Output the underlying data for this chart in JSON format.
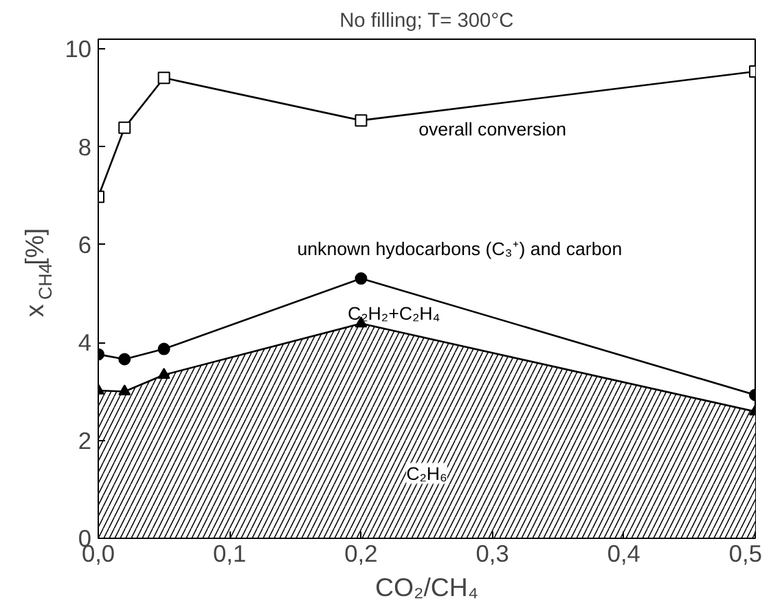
{
  "chart_data": {
    "type": "line",
    "title": "No filling; T= 300°C",
    "xlabel": "CO₂/CH₄",
    "ylabel": "x$_{CH4}$[%]",
    "x": [
      0,
      0.02,
      0.05,
      0.2,
      0.5
    ],
    "series": [
      {
        "marker": "square",
        "color": "#000000",
        "values": [
          6.98,
          8.39,
          9.41,
          8.54,
          9.54
        ]
      },
      {
        "marker": "circle",
        "color": "#000000",
        "values": [
          3.76,
          3.66,
          3.87,
          5.31,
          2.93
        ]
      },
      {
        "type": "area",
        "marker": "triangle",
        "color": "#000000",
        "values": [
          3.02,
          3.0,
          3.34,
          4.39,
          2.59
        ]
      }
    ],
    "xlim": [
      0,
      0.5
    ],
    "ylim": [
      0,
      10.2
    ],
    "xticks": [
      {
        "value": 0,
        "label": "0,0"
      },
      {
        "value": 0.1,
        "label": "0,1"
      },
      {
        "value": 0.2,
        "label": "0,2"
      },
      {
        "value": 0.3,
        "label": "0,3"
      },
      {
        "value": 0.4,
        "label": "0,4"
      },
      {
        "value": 0.5,
        "label": "0,5"
      }
    ],
    "yticks": [
      0,
      2,
      4,
      6,
      8,
      10
    ],
    "grid": false,
    "annotations": [
      "overall conversion",
      "unknown hydocarbons (C₃⁺) and carbon",
      "C₂H₂+C₂H₄",
      "C₂H₆"
    ]
  }
}
